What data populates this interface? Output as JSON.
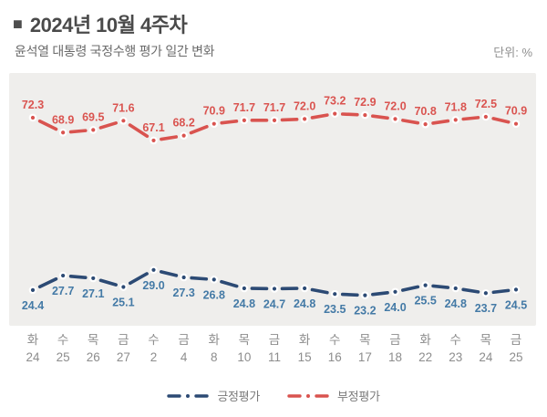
{
  "header": {
    "bullet": "■",
    "title": "2024년 10월 4주차",
    "subtitle": "윤석열 대통령 국정수행 평가 일간 변화",
    "unit_label": "단위: %"
  },
  "chart_data": {
    "type": "line",
    "title": "윤석열 대통령 국정수행 평가 일간 변화",
    "unit": "%",
    "grid": false,
    "legend_position": "bottom",
    "categories_day": [
      "화",
      "수",
      "목",
      "금",
      "수",
      "금",
      "화",
      "목",
      "금",
      "화",
      "수",
      "목",
      "금",
      "화",
      "수",
      "목",
      "금"
    ],
    "categories_date": [
      "24",
      "25",
      "26",
      "27",
      "2",
      "4",
      "8",
      "10",
      "11",
      "15",
      "16",
      "17",
      "18",
      "22",
      "23",
      "24",
      "25"
    ],
    "series": [
      {
        "name": "긍정평가",
        "line_color": "#2c4a74",
        "label_color": "#447aa6",
        "values": [
          24.4,
          27.7,
          27.1,
          25.1,
          29.0,
          27.3,
          26.8,
          24.8,
          24.7,
          24.8,
          23.5,
          23.2,
          24.0,
          25.5,
          24.8,
          23.7,
          24.5
        ]
      },
      {
        "name": "부정평가",
        "line_color": "#d9534f",
        "label_color": "#da5450",
        "values": [
          72.3,
          68.9,
          69.5,
          71.6,
          67.1,
          68.2,
          70.9,
          71.7,
          71.7,
          72.0,
          73.2,
          72.9,
          72.0,
          70.8,
          71.8,
          72.5,
          70.9
        ]
      }
    ]
  },
  "legend": {
    "items": [
      {
        "label": "긍정평가",
        "color": "#2c4a74"
      },
      {
        "label": "부정평가",
        "color": "#d9534f"
      }
    ]
  },
  "colors": {
    "plot_background": "#efeeec",
    "axis_text": "#8d8d8d",
    "title_text": "#4a4a4a"
  }
}
